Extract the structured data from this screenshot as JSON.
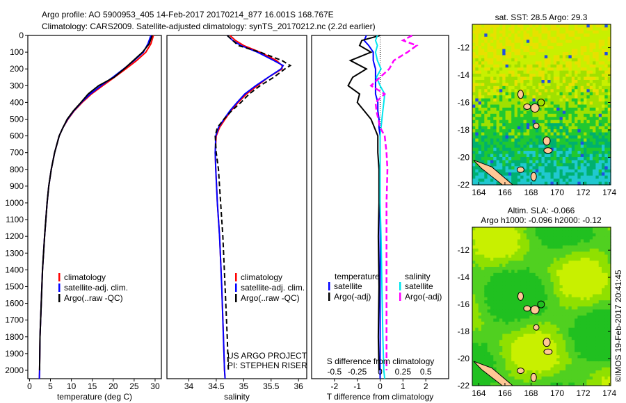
{
  "title_line1": "Argo profile: AO 5900953_405 14-Feb-2017 20170214_877 16.001S 168.767E",
  "title_line2": "Climatology: CARS2009. Satellite-adjusted climatology: synTS_20170212.nc (2.2d earlier)",
  "colors": {
    "climatology": "#ff0000",
    "satellite": "#0000ff",
    "argo": "#000000",
    "sal_sat": "#00e5ee",
    "sal_argo": "#ff00ff"
  },
  "chart_data": [
    {
      "type": "line",
      "id": "temperature",
      "xlabel": "temperature (deg C)",
      "xlim": [
        -0.4,
        31.5
      ],
      "ylim": [
        2050,
        0
      ],
      "xticks": [
        0,
        5,
        10,
        15,
        20,
        25,
        30
      ],
      "yticks": [
        0,
        100,
        200,
        300,
        400,
        500,
        600,
        700,
        800,
        900,
        1000,
        1100,
        1200,
        1300,
        1400,
        1500,
        1600,
        1700,
        1800,
        1900,
        2000
      ],
      "legend": [
        "climatology",
        "satellite-adj. clim.",
        "Argo(..raw -QC)"
      ],
      "depth": [
        0,
        50,
        100,
        150,
        200,
        250,
        300,
        350,
        400,
        450,
        500,
        550,
        600,
        700,
        800,
        900,
        1000,
        1200,
        1400,
        1600,
        1800,
        2000,
        2050
      ],
      "series": [
        {
          "name": "climatology",
          "values": [
            29.6,
            29.0,
            27.8,
            25.6,
            23.0,
            20.3,
            17.5,
            14.8,
            12.6,
            10.7,
            9.2,
            8.0,
            7.1,
            6.0,
            5.2,
            4.6,
            4.2,
            3.6,
            3.1,
            2.8,
            2.5,
            2.4,
            2.35
          ]
        },
        {
          "name": "satellite-adj. clim.",
          "values": [
            29.0,
            28.3,
            27.2,
            25.0,
            22.5,
            19.9,
            17.1,
            14.5,
            12.4,
            10.6,
            9.1,
            8.0,
            7.1,
            6.0,
            5.2,
            4.6,
            4.2,
            3.6,
            3.1,
            2.8,
            2.5,
            2.4,
            2.35
          ]
        },
        {
          "name": "Argo(..raw -QC)",
          "values": [
            29.3,
            28.6,
            27.0,
            24.8,
            22.6,
            20.2,
            16.5,
            14.0,
            12.3,
            10.5,
            9.0,
            8.0,
            7.1,
            6.0,
            5.2,
            4.6,
            4.2,
            3.6,
            3.1,
            2.8,
            2.5,
            2.4,
            null
          ]
        }
      ]
    },
    {
      "type": "line",
      "id": "salinity",
      "xlabel": "salinity",
      "xlim": [
        33.6,
        36.15
      ],
      "ylim": [
        2050,
        0
      ],
      "xticks": [
        34,
        34.5,
        35,
        35.5,
        36
      ],
      "legend": [
        "climatology",
        "satellite-adj. clim.",
        "Argo(..raw -QC)"
      ],
      "annotation": [
        "US ARGO PROJECT",
        "PI: STEPHEN RISER"
      ],
      "depth": [
        0,
        30,
        60,
        100,
        150,
        180,
        200,
        250,
        300,
        350,
        400,
        450,
        500,
        550,
        600,
        700,
        800,
        1000,
        1200,
        1500,
        1800,
        2000,
        2050
      ],
      "series": [
        {
          "name": "climatology",
          "values": [
            34.75,
            34.85,
            35.0,
            35.3,
            35.6,
            35.7,
            35.7,
            35.45,
            35.25,
            35.05,
            34.9,
            34.77,
            34.66,
            34.56,
            34.5,
            34.48,
            34.49,
            34.52,
            34.56,
            34.6,
            34.63,
            34.65,
            34.66
          ]
        },
        {
          "name": "satellite-adj. clim.",
          "values": [
            34.7,
            34.8,
            34.95,
            35.25,
            35.55,
            35.72,
            35.68,
            35.45,
            35.22,
            35.02,
            34.88,
            34.75,
            34.64,
            34.54,
            34.49,
            34.48,
            34.49,
            34.52,
            34.56,
            34.6,
            34.63,
            34.65,
            34.66
          ]
        },
        {
          "name": "Argo(..raw -QC)",
          "values": [
            34.7,
            34.8,
            34.9,
            35.3,
            35.7,
            35.85,
            35.75,
            35.55,
            35.3,
            35.1,
            34.95,
            34.78,
            34.64,
            34.52,
            34.48,
            34.5,
            34.54,
            34.58,
            34.62,
            34.66,
            34.7,
            34.72,
            null
          ]
        }
      ]
    },
    {
      "type": "line",
      "id": "difference",
      "xlabel": "T difference from climatology",
      "x2label": "S difference from climatology",
      "xlim": [
        -3,
        3
      ],
      "x2lim": [
        -0.75,
        0.75
      ],
      "ylim": [
        2050,
        0
      ],
      "xticks": [
        -2,
        -1,
        0,
        1,
        2
      ],
      "x2ticks": [
        -0.5,
        -0.25,
        0,
        0.25,
        0.5
      ],
      "legend_temperature": {
        "title": "temperature",
        "items": [
          "satellite",
          "Argo(-adj)"
        ]
      },
      "legend_salinity": {
        "title": "salinity",
        "items": [
          "satellite",
          "Argo(-adj)"
        ]
      },
      "depth": [
        0,
        30,
        60,
        100,
        150,
        200,
        250,
        300,
        350,
        400,
        450,
        500,
        550,
        600,
        700,
        800,
        1000,
        1200,
        1500,
        1800,
        2000,
        2050
      ],
      "series": [
        {
          "name": "T satellite",
          "values": [
            -0.6,
            -0.7,
            -0.5,
            -0.3,
            -0.3,
            -0.2,
            -0.2,
            -0.2,
            -0.2,
            -0.1,
            -0.1,
            -0.05,
            -0.05,
            0,
            0,
            0,
            0,
            0,
            0,
            0,
            0,
            0
          ]
        },
        {
          "name": "T Argo(-adj)",
          "values": [
            0.0,
            -0.8,
            -0.9,
            -0.4,
            -1.3,
            -0.6,
            -1.2,
            -1.4,
            -0.9,
            -1.0,
            -0.7,
            -0.4,
            -0.25,
            -0.1,
            -0.1,
            -0.05,
            -0.05,
            -0.08,
            -0.05,
            -0.08,
            -0.05,
            null
          ]
        },
        {
          "name": "S satellite",
          "values": [
            -0.03,
            -0.05,
            -0.03,
            -0.05,
            -0.03,
            0.01,
            -0.04,
            0.0,
            0.05,
            0.04,
            0.03,
            0.02,
            0.01,
            0.0,
            0.0,
            0.0,
            0.0,
            0.01,
            0.02,
            0.03,
            0.04,
            0.05
          ]
        },
        {
          "name": "S Argo(-adj)",
          "values": [
            0.35,
            0.25,
            0.4,
            0.3,
            0.15,
            0.1,
            0.0,
            -0.1,
            0.05,
            -0.05,
            -0.04,
            -0.02,
            0.0,
            0.05,
            0.07,
            0.08,
            0.07,
            0.07,
            0.07,
            0.07,
            0.07,
            null
          ]
        }
      ]
    }
  ],
  "maps": [
    {
      "title": "sat. SST: 28.5 Argo: 29.3",
      "xticks": [
        164,
        166,
        168,
        170,
        172,
        174
      ],
      "yticks": [
        -12,
        -14,
        -16,
        -18,
        -20,
        -22
      ]
    },
    {
      "title1": "Altim. SLA: -0.066",
      "title2": "Argo h1000: -0.096 h2000: -0.12",
      "xticks": [
        164,
        166,
        168,
        170,
        172,
        174
      ],
      "yticks": [
        -12,
        -14,
        -16,
        -18,
        -20,
        -22
      ]
    }
  ],
  "float_position": {
    "lon": 168.767,
    "lat": -16.001
  },
  "footer": "©IMOS 19-Feb-2017 20:41:45"
}
